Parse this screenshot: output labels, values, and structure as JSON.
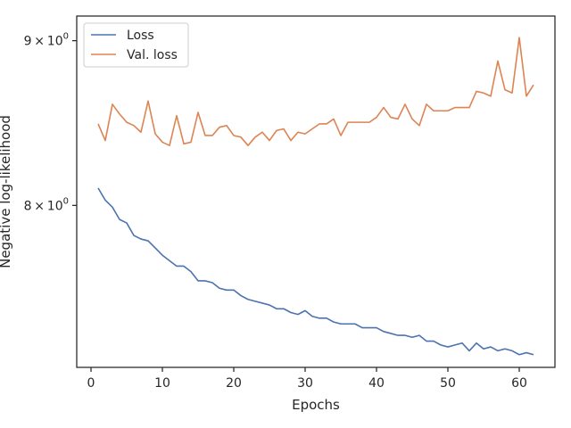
{
  "chart_data": {
    "type": "line",
    "xlabel": "Epochs",
    "ylabel": "Negative log-likelihood",
    "yscale": "log",
    "xlim": [
      -2.0,
      65.0
    ],
    "ylim": [
      7.125,
      9.16
    ],
    "grid": false,
    "legend": "top-left",
    "x_ticks": [
      {
        "value": 0,
        "label": "0"
      },
      {
        "value": 10,
        "label": "10"
      },
      {
        "value": 20,
        "label": "20"
      },
      {
        "value": 30,
        "label": "30"
      },
      {
        "value": 40,
        "label": "40"
      },
      {
        "value": 50,
        "label": "50"
      },
      {
        "value": 60,
        "label": "60"
      }
    ],
    "y_ticks": [
      {
        "value": 8,
        "base": "8",
        "sup": "0"
      },
      {
        "value": 9,
        "base": "9",
        "sup": "0"
      }
    ],
    "x": [
      1,
      2,
      3,
      4,
      5,
      6,
      7,
      8,
      9,
      10,
      11,
      12,
      13,
      14,
      15,
      16,
      17,
      18,
      19,
      20,
      21,
      22,
      23,
      24,
      25,
      26,
      27,
      28,
      29,
      30,
      31,
      32,
      33,
      34,
      35,
      36,
      37,
      38,
      39,
      40,
      41,
      42,
      43,
      44,
      45,
      46,
      47,
      48,
      49,
      50,
      51,
      52,
      53,
      54,
      55,
      56,
      57,
      58,
      59,
      60,
      61,
      62
    ],
    "series": [
      {
        "name": "Loss",
        "color": "#4c72b0",
        "values": [
          8.1,
          8.03,
          7.99,
          7.92,
          7.9,
          7.83,
          7.81,
          7.8,
          7.76,
          7.72,
          7.69,
          7.66,
          7.66,
          7.63,
          7.58,
          7.58,
          7.57,
          7.54,
          7.53,
          7.53,
          7.5,
          7.48,
          7.47,
          7.46,
          7.45,
          7.43,
          7.43,
          7.41,
          7.4,
          7.42,
          7.39,
          7.38,
          7.38,
          7.36,
          7.35,
          7.35,
          7.35,
          7.33,
          7.33,
          7.33,
          7.31,
          7.3,
          7.29,
          7.29,
          7.28,
          7.29,
          7.26,
          7.26,
          7.24,
          7.23,
          7.24,
          7.25,
          7.21,
          7.25,
          7.22,
          7.23,
          7.21,
          7.22,
          7.21,
          7.19,
          7.2,
          7.19
        ]
      },
      {
        "name": "Val. loss",
        "color": "#dd8452",
        "values": [
          8.48,
          8.38,
          8.6,
          8.54,
          8.49,
          8.47,
          8.43,
          8.62,
          8.42,
          8.37,
          8.35,
          8.53,
          8.36,
          8.37,
          8.55,
          8.41,
          8.41,
          8.46,
          8.47,
          8.41,
          8.4,
          8.35,
          8.4,
          8.43,
          8.38,
          8.44,
          8.45,
          8.38,
          8.43,
          8.42,
          8.45,
          8.48,
          8.48,
          8.51,
          8.41,
          8.49,
          8.49,
          8.49,
          8.49,
          8.52,
          8.58,
          8.52,
          8.51,
          8.6,
          8.51,
          8.47,
          8.6,
          8.56,
          8.56,
          8.56,
          8.58,
          8.58,
          8.58,
          8.68,
          8.67,
          8.65,
          8.87,
          8.69,
          8.67,
          9.02,
          8.65,
          8.72
        ]
      }
    ]
  }
}
